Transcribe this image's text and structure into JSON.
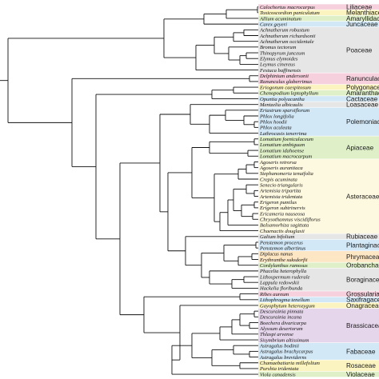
{
  "colors": {
    "pink": "#f6d0dc",
    "yellow": "#fbf4c0",
    "green": "#dff0c8",
    "blue": "#d2e8f7",
    "grey": "#e6e6e6",
    "lavender": "#e6d6ec",
    "cream": "#fdf8e0",
    "orange": "#fde6c4",
    "branch": "#111111"
  },
  "tips": [
    {
      "name": "Calochortus macrocarpus"
    },
    {
      "name": "Toxicoscordion paniculatum"
    },
    {
      "name": "Allium acuminatum"
    },
    {
      "name": "Carex geyeri"
    },
    {
      "name": "Achnatherum robustum"
    },
    {
      "name": "Achnatherum richardsonii"
    },
    {
      "name": "Achnatherum occidentale"
    },
    {
      "name": "Bromus tectorum"
    },
    {
      "name": "Thinopyrum junceum"
    },
    {
      "name": "Elymus elymoides"
    },
    {
      "name": "Leymus cinereus"
    },
    {
      "name": "Festuca baffinensis"
    },
    {
      "name": "Delphinium andersonii"
    },
    {
      "name": "Ranunculus glaberrimus"
    },
    {
      "name": "Eriogonum caespitosum"
    },
    {
      "name": "Chenopodium leptophyllum"
    },
    {
      "name": "Opuntia polyacantha"
    },
    {
      "name": "Mentzelia albicaulis"
    },
    {
      "name": "Eriastrum sparsiflorum"
    },
    {
      "name": "Phlox longifolia"
    },
    {
      "name": "Phlox hoodii"
    },
    {
      "name": "Phlox aculeata"
    },
    {
      "name": "Lathrocasis tenerrima"
    },
    {
      "name": "Lomatium foeniculaceum"
    },
    {
      "name": "Lomatium ambiguum"
    },
    {
      "name": "Lomatium idahoense"
    },
    {
      "name": "Lomatium macrocarpum"
    },
    {
      "name": "Agoseris retrorsa"
    },
    {
      "name": "Agoseris aurantiaca"
    },
    {
      "name": "Stephanomeria tenuifolia"
    },
    {
      "name": "Crepis acuminata"
    },
    {
      "name": "Senecio triangularis"
    },
    {
      "name": "Artemisia tripartita"
    },
    {
      "name": "Artemisia tridentata"
    },
    {
      "name": "Erigeron pumilus"
    },
    {
      "name": "Erigeron subtrinervis"
    },
    {
      "name": "Ericameria nauseosa"
    },
    {
      "name": "Chrysothamnus viscidiflorus"
    },
    {
      "name": "Balsamorhiza sagittata"
    },
    {
      "name": "Chaenactis douglasii"
    },
    {
      "name": "Galium bifolium"
    },
    {
      "name": "Penstemon procerus"
    },
    {
      "name": "Penstemon albertinus"
    },
    {
      "name": "Diplacus nanus"
    },
    {
      "name": "Erythranthe suksdorfii"
    },
    {
      "name": "Cordylanthus ramosus"
    },
    {
      "name": "Phacelia heterophylla"
    },
    {
      "name": "Lithospermum ruderale"
    },
    {
      "name": "Lappula redowskii"
    },
    {
      "name": "Hackelia floribunda"
    },
    {
      "name": "Ribes aureum"
    },
    {
      "name": "Lithophragma tenellum"
    },
    {
      "name": "Gayophytum heterozygum"
    },
    {
      "name": "Descurainia pinnata"
    },
    {
      "name": "Descurainia incana"
    },
    {
      "name": "Boechera divaricarpa"
    },
    {
      "name": "Alyssum desertorum"
    },
    {
      "name": "Thlaspi arvense"
    },
    {
      "name": "Sisymbrium altissimum"
    },
    {
      "name": "Astragalus bodinii"
    },
    {
      "name": "Astragalus brachycarpus"
    },
    {
      "name": "Astragalus breviderns"
    },
    {
      "name": "Chamaebatiaria millefolium"
    },
    {
      "name": "Purshia tridentata"
    },
    {
      "name": "Viola canadensis"
    }
  ],
  "families": [
    {
      "name": "Liliaceae",
      "from": 0,
      "to": 0,
      "color": "pink"
    },
    {
      "name": "Melanthiaceae",
      "from": 1,
      "to": 1,
      "color": "yellow"
    },
    {
      "name": "Amaryllidaceae",
      "from": 2,
      "to": 2,
      "color": "green"
    },
    {
      "name": "Juncaceae",
      "from": 3,
      "to": 3,
      "color": "blue"
    },
    {
      "name": "Poaceae",
      "from": 4,
      "to": 11,
      "color": "grey"
    },
    {
      "name": "Ranunculaceae",
      "from": 12,
      "to": 13,
      "color": "pink"
    },
    {
      "name": "Polygonaceae",
      "from": 14,
      "to": 14,
      "color": "yellow"
    },
    {
      "name": "Amaranthaceae",
      "from": 15,
      "to": 15,
      "color": "green"
    },
    {
      "name": "Cactaceae",
      "from": 16,
      "to": 16,
      "color": "blue"
    },
    {
      "name": "Loasaceae",
      "from": 17,
      "to": 17,
      "color": "grey"
    },
    {
      "name": "Polemoniaceae",
      "from": 18,
      "to": 22,
      "color": "blue"
    },
    {
      "name": "Apiaceae",
      "from": 23,
      "to": 26,
      "color": "green"
    },
    {
      "name": "Asteraceae",
      "from": 27,
      "to": 39,
      "color": "cream"
    },
    {
      "name": "Rubiaceae",
      "from": 40,
      "to": 40,
      "color": "grey"
    },
    {
      "name": "Plantaginaceae",
      "from": 41,
      "to": 42,
      "color": "blue"
    },
    {
      "name": "Phrymaceae",
      "from": 43,
      "to": 44,
      "color": "orange"
    },
    {
      "name": "Orobanchaceae",
      "from": 45,
      "to": 45,
      "color": "green"
    },
    {
      "name": "Boraginaceae",
      "from": 46,
      "to": 49,
      "color": "grey"
    },
    {
      "name": "Grossulariaceae",
      "from": 50,
      "to": 50,
      "color": "pink"
    },
    {
      "name": "Saxifragaceae",
      "from": 51,
      "to": 51,
      "color": "blue"
    },
    {
      "name": "Onagraceae",
      "from": 52,
      "to": 52,
      "color": "yellow"
    },
    {
      "name": "Brassicaceae",
      "from": 53,
      "to": 58,
      "color": "lavender"
    },
    {
      "name": "Fabaceae",
      "from": 59,
      "to": 61,
      "color": "blue"
    },
    {
      "name": "Rosaceae",
      "from": 62,
      "to": 63,
      "color": "yellow"
    },
    {
      "name": "Violaceae",
      "from": 64,
      "to": 64,
      "color": "green"
    }
  ]
}
